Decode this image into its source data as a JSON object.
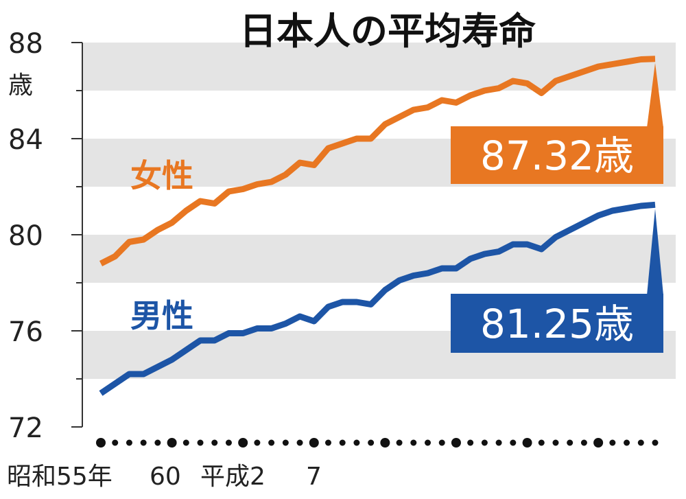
{
  "chart_data": {
    "type": "line",
    "title": "日本人の平均寿命",
    "unit_label": "歳",
    "ylim": [
      72,
      88
    ],
    "yticks": [
      72,
      76,
      80,
      84,
      88
    ],
    "grid": "horizontal alternating bands",
    "x": [
      1980,
      1981,
      1982,
      1983,
      1984,
      1985,
      1986,
      1987,
      1988,
      1989,
      1990,
      1991,
      1992,
      1993,
      1994,
      1995,
      1996,
      1997,
      1998,
      1999,
      2000,
      2001,
      2002,
      2003,
      2004,
      2005,
      2006,
      2007,
      2008,
      2009,
      2010,
      2011,
      2012,
      2013,
      2014,
      2015,
      2016,
      2017,
      2018,
      2019
    ],
    "x_tick_labels": [
      {
        "x": 1980,
        "label": "昭和55年"
      },
      {
        "x": 1985,
        "label": "60"
      },
      {
        "x": 1990,
        "label": "平成2"
      },
      {
        "x": 1995,
        "label": "7"
      }
    ],
    "series": [
      {
        "name": "女性",
        "color": "#e87722",
        "values": [
          78.8,
          79.1,
          79.7,
          79.8,
          80.2,
          80.5,
          81.0,
          81.4,
          81.3,
          81.8,
          81.9,
          82.1,
          82.2,
          82.5,
          83.0,
          82.9,
          83.6,
          83.8,
          84.0,
          84.0,
          84.6,
          84.9,
          85.2,
          85.3,
          85.6,
          85.5,
          85.8,
          86.0,
          86.1,
          86.4,
          86.3,
          85.9,
          86.4,
          86.6,
          86.8,
          87.0,
          87.1,
          87.2,
          87.3,
          87.32
        ]
      },
      {
        "name": "男性",
        "color": "#1d55a6",
        "values": [
          73.4,
          73.8,
          74.2,
          74.2,
          74.5,
          74.8,
          75.2,
          75.6,
          75.6,
          75.9,
          75.9,
          76.1,
          76.1,
          76.3,
          76.6,
          76.4,
          77.0,
          77.2,
          77.2,
          77.1,
          77.7,
          78.1,
          78.3,
          78.4,
          78.6,
          78.6,
          79.0,
          79.2,
          79.3,
          79.6,
          79.6,
          79.4,
          79.9,
          80.2,
          80.5,
          80.8,
          81.0,
          81.1,
          81.2,
          81.25
        ]
      }
    ],
    "callouts": [
      {
        "series": "女性",
        "value_text": "87.32歳",
        "color": "#e87722"
      },
      {
        "series": "男性",
        "value_text": "81.25歳",
        "color": "#1d55a6"
      }
    ]
  }
}
